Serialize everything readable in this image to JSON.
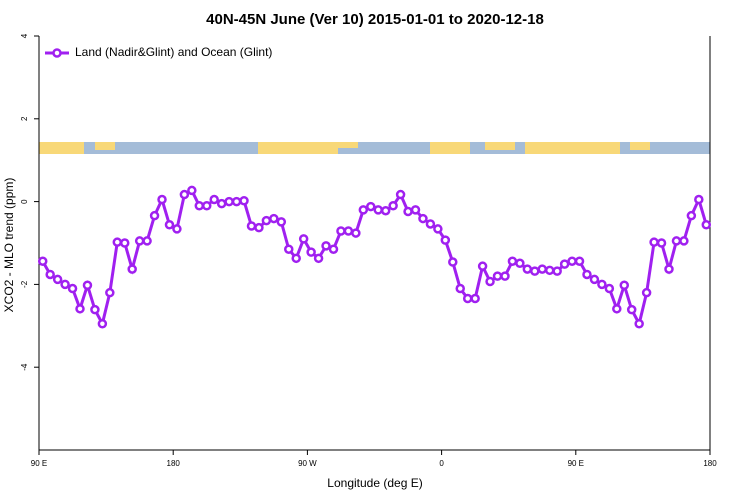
{
  "chart_data": {
    "type": "line",
    "title": "40N-45N June (Ver 10)   2015-01-01 to 2020-12-18",
    "x_label": "Longitude (deg E)",
    "y_label": "XCO2 - MLO trend (ppm)",
    "xlim": [
      90,
      540
    ],
    "ylim": [
      -6,
      4
    ],
    "xticks": [
      {
        "value": 90,
        "label": "90 E"
      },
      180,
      {
        "value": 270,
        "label": "90 W"
      },
      {
        "value": 360,
        "label": "0"
      },
      {
        "value": 450,
        "label": "90 E"
      },
      {
        "value": 540,
        "label": "180"
      }
    ],
    "yticks": [
      -4,
      -2,
      0,
      2,
      4
    ],
    "legend": "top-left",
    "x": [
      92.5,
      97.5,
      102.5,
      107.5,
      112.5,
      117.5,
      122.5,
      127.5,
      132.5,
      137.5,
      142.5,
      147.5,
      152.5,
      157.5,
      162.5,
      167.5,
      172.5,
      177.5,
      182.5,
      187.5,
      192.5,
      197.5,
      202.5,
      207.5,
      212.5,
      217.5,
      222.5,
      227.5,
      232.5,
      237.5,
      242.5,
      247.5,
      252.5,
      257.5,
      262.5,
      267.5,
      272.5,
      277.5,
      282.5,
      287.5,
      292.5,
      297.5,
      302.5,
      307.5,
      312.5,
      317.5,
      322.5,
      327.5,
      332.5,
      337.5,
      342.5,
      347.5,
      352.5,
      357.5,
      362.5,
      367.5,
      372.5,
      377.5,
      382.5,
      387.5,
      392.5,
      397.5,
      402.5,
      407.5,
      412.5,
      417.5,
      422.5,
      427.5,
      432.5,
      437.5,
      442.5,
      447.5,
      452.5,
      457.5,
      462.5,
      467.5,
      472.5,
      477.5,
      482.5,
      487.5,
      492.5,
      497.5,
      502.5,
      507.5,
      512.5,
      517.5,
      522.5,
      527.5,
      532.5,
      537.5
    ],
    "series": [
      {
        "name": "Land (Nadir&Glint) and Ocean (Glint)",
        "color": "#a020f0",
        "values": [
          -1.44,
          -1.76,
          -1.88,
          -2.0,
          -2.1,
          -2.59,
          -2.02,
          -2.61,
          -2.95,
          -2.2,
          -0.98,
          -1.0,
          -1.63,
          -0.95,
          -0.95,
          -0.34,
          0.05,
          -0.56,
          -0.66,
          0.17,
          0.27,
          -0.1,
          -0.1,
          0.05,
          -0.05,
          0.0,
          0.0,
          0.02,
          -0.59,
          -0.63,
          -0.46,
          -0.41,
          -0.49,
          -1.15,
          -1.37,
          -0.9,
          -1.22,
          -1.37,
          -1.07,
          -1.15,
          -0.71,
          -0.71,
          -0.76,
          -0.2,
          -0.12,
          -0.2,
          -0.22,
          -0.1,
          0.17,
          -0.24,
          -0.2,
          -0.41,
          -0.54,
          -0.66,
          -0.93,
          -1.46,
          -2.1,
          -2.34,
          -2.34,
          -1.56,
          -1.93,
          -1.8,
          -1.8,
          -1.44,
          -1.49,
          -1.63,
          -1.68,
          -1.63,
          -1.66,
          -1.68,
          -1.51,
          -1.44,
          -1.44,
          -1.76,
          -1.88,
          -2.0,
          -2.1,
          -2.59,
          -2.02,
          -2.61,
          -2.95,
          -2.2,
          -0.98,
          -1.0,
          -1.63,
          -0.95,
          -0.95,
          -0.34,
          0.05,
          -0.56
        ]
      }
    ]
  }
}
